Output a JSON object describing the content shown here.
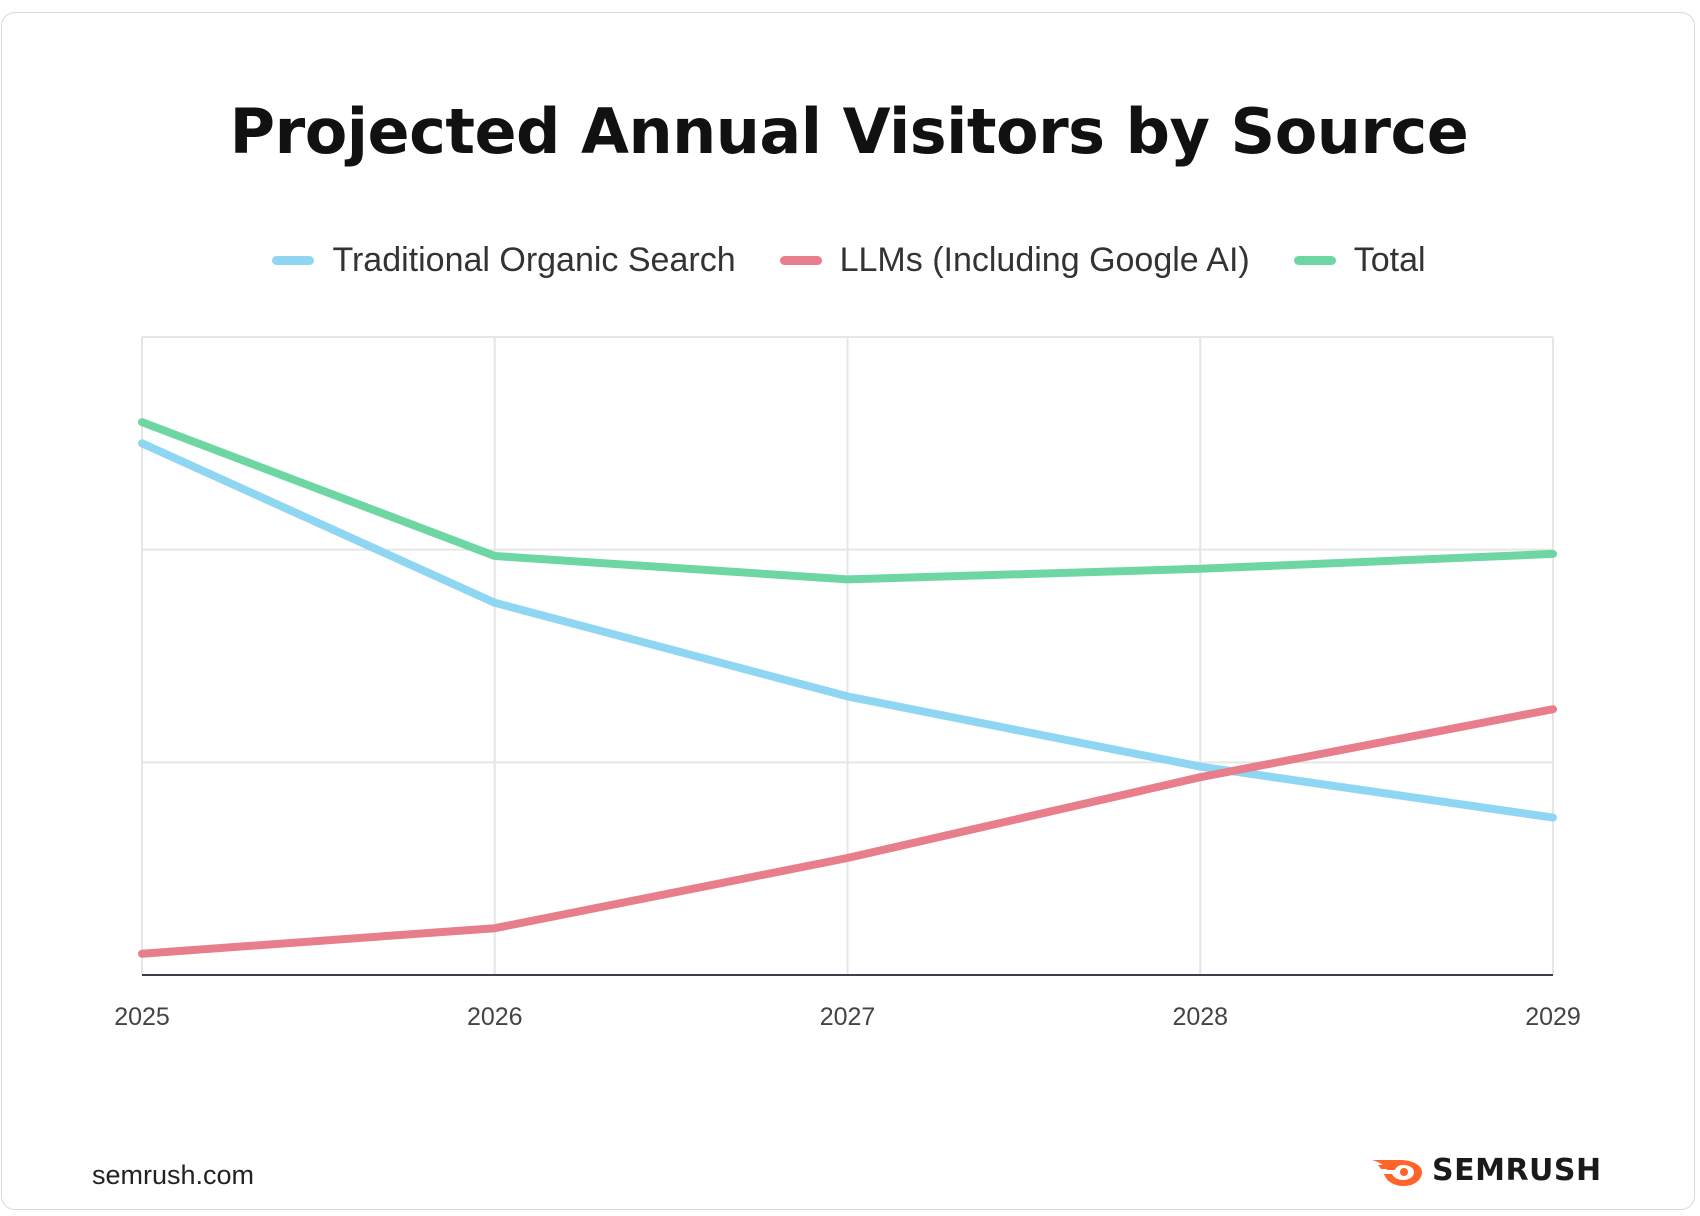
{
  "chart_data": {
    "type": "line",
    "title": "Projected Annual Visitors by Source",
    "x": [
      "2025",
      "2026",
      "2027",
      "2028",
      "2029"
    ],
    "xlabel": "",
    "ylabel": "",
    "ylim": [
      0,
      3
    ],
    "grid": true,
    "legend_position": "top",
    "series": [
      {
        "name": "Traditional Organic Search",
        "color": "#8fd6f3",
        "values": [
          2.5,
          1.75,
          1.31,
          0.98,
          0.74
        ]
      },
      {
        "name": "LLMs (Including Google AI)",
        "color": "#e87d8c",
        "values": [
          0.1,
          0.22,
          0.55,
          0.93,
          1.25
        ]
      },
      {
        "name": "Total",
        "color": "#6dd6a2",
        "values": [
          2.6,
          1.97,
          1.86,
          1.91,
          1.98
        ]
      }
    ]
  },
  "footer": {
    "source": "semrush.com",
    "brand": "SEMRUSH",
    "brand_icon": "semrush-fire-icon",
    "brand_color": "#ff642d"
  }
}
